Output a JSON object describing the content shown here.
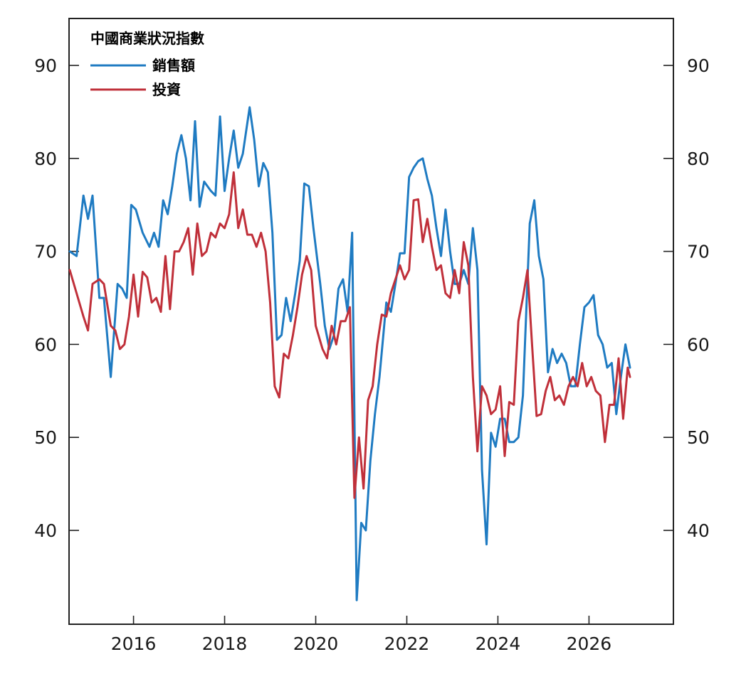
{
  "chart_data": {
    "type": "line",
    "title": "",
    "xlabel": "",
    "ylabel": "",
    "legend": {
      "title": "中國商業狀況指數",
      "placement": "top-left"
    },
    "xlim": [
      2014.6,
      2026.9
    ],
    "ylim": [
      30,
      95
    ],
    "x_ticks": [
      2016,
      2018,
      2020,
      2022,
      2024,
      2026
    ],
    "x_tick_labels": [
      "2016",
      "2018",
      "2020",
      "2022",
      "2024",
      "2026"
    ],
    "y_ticks": [
      40,
      50,
      60,
      70,
      80,
      90
    ],
    "y_tick_labels_left": [
      "40",
      "50",
      "60",
      "70",
      "80",
      "90"
    ],
    "y_tick_labels_right": [
      "40",
      "50",
      "60",
      "70",
      "80",
      "90"
    ],
    "grid": false,
    "series": [
      {
        "name": "銷售額",
        "color": "#1f7bc2",
        "points": [
          [
            2014.6,
            70.0
          ],
          [
            2014.75,
            69.5
          ],
          [
            2014.9,
            76.0
          ],
          [
            2015.0,
            73.5
          ],
          [
            2015.1,
            76.0
          ],
          [
            2015.25,
            65.0
          ],
          [
            2015.35,
            65.0
          ],
          [
            2015.5,
            56.5
          ],
          [
            2015.65,
            66.5
          ],
          [
            2015.75,
            66.0
          ],
          [
            2015.85,
            65.0
          ],
          [
            2015.95,
            75.0
          ],
          [
            2016.05,
            74.5
          ],
          [
            2016.2,
            72.0
          ],
          [
            2016.35,
            70.5
          ],
          [
            2016.45,
            72.0
          ],
          [
            2016.55,
            70.5
          ],
          [
            2016.65,
            75.5
          ],
          [
            2016.75,
            74.0
          ],
          [
            2016.85,
            77.0
          ],
          [
            2016.95,
            80.5
          ],
          [
            2017.05,
            82.5
          ],
          [
            2017.15,
            80.0
          ],
          [
            2017.25,
            75.5
          ],
          [
            2017.35,
            84.0
          ],
          [
            2017.45,
            74.8
          ],
          [
            2017.55,
            77.5
          ],
          [
            2017.7,
            76.5
          ],
          [
            2017.8,
            76.0
          ],
          [
            2017.9,
            84.5
          ],
          [
            2018.0,
            76.5
          ],
          [
            2018.1,
            80.0
          ],
          [
            2018.2,
            83.0
          ],
          [
            2018.3,
            79.0
          ],
          [
            2018.4,
            80.5
          ],
          [
            2018.55,
            85.5
          ],
          [
            2018.65,
            82.0
          ],
          [
            2018.75,
            77.0
          ],
          [
            2018.85,
            79.5
          ],
          [
            2018.95,
            78.5
          ],
          [
            2019.05,
            72.0
          ],
          [
            2019.15,
            60.5
          ],
          [
            2019.25,
            61.0
          ],
          [
            2019.35,
            65.0
          ],
          [
            2019.45,
            62.5
          ],
          [
            2019.55,
            65.5
          ],
          [
            2019.65,
            69.0
          ],
          [
            2019.75,
            77.3
          ],
          [
            2019.85,
            77.0
          ],
          [
            2019.95,
            72.5
          ],
          [
            2020.1,
            66.5
          ],
          [
            2020.2,
            62.0
          ],
          [
            2020.3,
            59.5
          ],
          [
            2020.4,
            61.0
          ],
          [
            2020.5,
            66.0
          ],
          [
            2020.6,
            67.0
          ],
          [
            2020.7,
            63.5
          ],
          [
            2020.8,
            72.0
          ],
          [
            2020.9,
            32.5
          ],
          [
            2021.0,
            40.8
          ],
          [
            2021.1,
            40.0
          ],
          [
            2021.2,
            47.5
          ],
          [
            2021.3,
            52.5
          ],
          [
            2021.4,
            56.5
          ],
          [
            2021.55,
            64.5
          ],
          [
            2021.65,
            63.5
          ],
          [
            2021.75,
            66.5
          ],
          [
            2021.85,
            69.8
          ],
          [
            2021.95,
            69.8
          ],
          [
            2022.05,
            78.0
          ],
          [
            2022.15,
            79.0
          ],
          [
            2022.25,
            79.7
          ],
          [
            2022.35,
            80.0
          ],
          [
            2022.45,
            77.8
          ],
          [
            2022.55,
            76.0
          ],
          [
            2022.65,
            72.5
          ],
          [
            2022.75,
            69.5
          ],
          [
            2022.85,
            74.5
          ],
          [
            2022.95,
            70.0
          ],
          [
            2023.05,
            66.5
          ],
          [
            2023.15,
            66.5
          ],
          [
            2023.25,
            68.0
          ],
          [
            2023.35,
            66.5
          ],
          [
            2023.45,
            72.5
          ],
          [
            2023.55,
            68.0
          ],
          [
            2023.65,
            46.5
          ],
          [
            2023.75,
            38.5
          ],
          [
            2023.85,
            50.5
          ],
          [
            2023.95,
            49.0
          ],
          [
            2024.05,
            52.0
          ],
          [
            2024.15,
            52.0
          ],
          [
            2024.25,
            49.5
          ],
          [
            2024.35,
            49.5
          ],
          [
            2024.45,
            50.0
          ],
          [
            2024.55,
            54.5
          ],
          [
            2024.7,
            73.0
          ],
          [
            2024.8,
            75.5
          ],
          [
            2024.9,
            69.5
          ],
          [
            2025.0,
            67.0
          ],
          [
            2025.1,
            57.0
          ],
          [
            2025.2,
            59.5
          ],
          [
            2025.3,
            58.0
          ],
          [
            2025.4,
            59.0
          ],
          [
            2025.5,
            58.0
          ],
          [
            2025.6,
            55.5
          ],
          [
            2025.7,
            55.5
          ],
          [
            2025.8,
            60.0
          ],
          [
            2025.9,
            64.0
          ],
          [
            2026.0,
            64.5
          ],
          [
            2026.1,
            65.3
          ],
          [
            2026.2,
            61.0
          ],
          [
            2026.3,
            60.0
          ],
          [
            2026.4,
            57.5
          ],
          [
            2026.5,
            58.0
          ],
          [
            2026.6,
            52.5
          ],
          [
            2026.7,
            56.5
          ],
          [
            2026.8,
            60.0
          ],
          [
            2026.9,
            57.5
          ]
        ]
      },
      {
        "name": "投資",
        "color": "#c0303a",
        "points": [
          [
            2014.6,
            68.0
          ],
          [
            2014.75,
            65.5
          ],
          [
            2014.9,
            63.0
          ],
          [
            2015.0,
            61.5
          ],
          [
            2015.1,
            66.5
          ],
          [
            2015.25,
            67.0
          ],
          [
            2015.35,
            66.5
          ],
          [
            2015.5,
            62.0
          ],
          [
            2015.6,
            61.5
          ],
          [
            2015.7,
            59.5
          ],
          [
            2015.8,
            60.0
          ],
          [
            2015.9,
            63.0
          ],
          [
            2016.0,
            67.5
          ],
          [
            2016.1,
            63.0
          ],
          [
            2016.2,
            67.8
          ],
          [
            2016.3,
            67.2
          ],
          [
            2016.4,
            64.5
          ],
          [
            2016.5,
            65.0
          ],
          [
            2016.6,
            63.5
          ],
          [
            2016.7,
            69.5
          ],
          [
            2016.8,
            63.8
          ],
          [
            2016.9,
            70.0
          ],
          [
            2017.0,
            70.0
          ],
          [
            2017.1,
            71.0
          ],
          [
            2017.2,
            72.5
          ],
          [
            2017.3,
            67.5
          ],
          [
            2017.4,
            73.0
          ],
          [
            2017.5,
            69.5
          ],
          [
            2017.6,
            70.0
          ],
          [
            2017.7,
            72.0
          ],
          [
            2017.8,
            71.5
          ],
          [
            2017.9,
            73.0
          ],
          [
            2018.0,
            72.5
          ],
          [
            2018.1,
            74.0
          ],
          [
            2018.2,
            78.5
          ],
          [
            2018.3,
            72.5
          ],
          [
            2018.4,
            74.5
          ],
          [
            2018.5,
            71.8
          ],
          [
            2018.6,
            71.8
          ],
          [
            2018.7,
            70.5
          ],
          [
            2018.8,
            72.0
          ],
          [
            2018.9,
            70.0
          ],
          [
            2019.0,
            64.5
          ],
          [
            2019.1,
            55.5
          ],
          [
            2019.2,
            54.3
          ],
          [
            2019.3,
            59.0
          ],
          [
            2019.4,
            58.5
          ],
          [
            2019.5,
            61.0
          ],
          [
            2019.6,
            64.0
          ],
          [
            2019.7,
            67.5
          ],
          [
            2019.8,
            69.5
          ],
          [
            2019.9,
            68.0
          ],
          [
            2020.0,
            62.0
          ],
          [
            2020.15,
            59.5
          ],
          [
            2020.25,
            58.5
          ],
          [
            2020.35,
            62.0
          ],
          [
            2020.45,
            60.0
          ],
          [
            2020.55,
            62.5
          ],
          [
            2020.65,
            62.5
          ],
          [
            2020.75,
            64.0
          ],
          [
            2020.85,
            43.5
          ],
          [
            2020.95,
            50.0
          ],
          [
            2021.05,
            44.5
          ],
          [
            2021.15,
            54.0
          ],
          [
            2021.25,
            55.5
          ],
          [
            2021.35,
            60.0
          ],
          [
            2021.45,
            63.2
          ],
          [
            2021.55,
            63.0
          ],
          [
            2021.65,
            65.5
          ],
          [
            2021.75,
            67.0
          ],
          [
            2021.85,
            68.5
          ],
          [
            2021.95,
            67.0
          ],
          [
            2022.05,
            68.0
          ],
          [
            2022.15,
            75.5
          ],
          [
            2022.25,
            75.6
          ],
          [
            2022.35,
            71.0
          ],
          [
            2022.45,
            73.5
          ],
          [
            2022.55,
            70.5
          ],
          [
            2022.65,
            68.0
          ],
          [
            2022.75,
            68.5
          ],
          [
            2022.85,
            65.5
          ],
          [
            2022.95,
            65.0
          ],
          [
            2023.05,
            68.0
          ],
          [
            2023.15,
            65.5
          ],
          [
            2023.25,
            71.0
          ],
          [
            2023.35,
            68.5
          ],
          [
            2023.45,
            56.5
          ],
          [
            2023.55,
            48.5
          ],
          [
            2023.65,
            55.5
          ],
          [
            2023.75,
            54.5
          ],
          [
            2023.85,
            52.5
          ],
          [
            2023.95,
            53.0
          ],
          [
            2024.05,
            55.5
          ],
          [
            2024.15,
            48.0
          ],
          [
            2024.25,
            53.8
          ],
          [
            2024.35,
            53.5
          ],
          [
            2024.45,
            62.5
          ],
          [
            2024.55,
            65.0
          ],
          [
            2024.65,
            68.0
          ],
          [
            2024.75,
            60.0
          ],
          [
            2024.85,
            52.3
          ],
          [
            2024.95,
            52.5
          ],
          [
            2025.05,
            55.0
          ],
          [
            2025.15,
            56.5
          ],
          [
            2025.25,
            54.0
          ],
          [
            2025.35,
            54.5
          ],
          [
            2025.45,
            53.5
          ],
          [
            2025.55,
            55.5
          ],
          [
            2025.65,
            56.5
          ],
          [
            2025.75,
            55.5
          ],
          [
            2025.85,
            58.0
          ],
          [
            2025.95,
            55.5
          ],
          [
            2026.05,
            56.5
          ],
          [
            2026.15,
            55.0
          ],
          [
            2026.25,
            54.5
          ],
          [
            2026.35,
            49.5
          ],
          [
            2026.45,
            53.5
          ],
          [
            2026.55,
            53.5
          ],
          [
            2026.65,
            58.5
          ],
          [
            2026.75,
            52.0
          ],
          [
            2026.85,
            57.5
          ],
          [
            2026.9,
            56.5
          ]
        ]
      }
    ]
  }
}
